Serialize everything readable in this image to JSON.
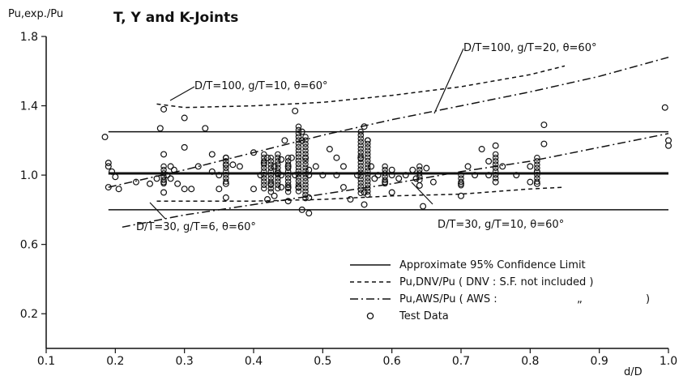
{
  "chart_data": {
    "type": "scatter",
    "title": "T, Y and K-Joints",
    "ylabel": "Pu,exp./Pu",
    "xlabel": "d/D",
    "xlim": [
      0.1,
      1.0
    ],
    "ylim": [
      0.0,
      1.8
    ],
    "x_ticks": [
      "0.1",
      "0.2",
      "0.3",
      "0.4",
      "0.5",
      "0.6",
      "0.7",
      "0.8",
      "0.9",
      "1.0"
    ],
    "y_ticks": [
      "0.2",
      "0.6",
      "1.0",
      "1.4",
      "1.8"
    ],
    "grid": false,
    "legend_position": "bottom-right",
    "legend": [
      {
        "key": "solid",
        "label": "Approximate 95% Confidence Limit"
      },
      {
        "key": "dashed",
        "label": "Pu,DNV/Pu ( DNV : S.F. not included )"
      },
      {
        "key": "dashdot",
        "label": "Pu,AWS/Pu ( AWS :"
      },
      {
        "key": "marker",
        "label": "Test Data"
      }
    ],
    "legend_ditto": "„",
    "legend_close": ")",
    "annotations": [
      {
        "text": "D/T=100, g/T=20, θ=60°"
      },
      {
        "text": "D/T=100, g/T=10, θ=60°"
      },
      {
        "text": "D/T=30, g/T=6, θ=60°"
      },
      {
        "text": "D/T=30, g/T=10, θ=60°"
      }
    ],
    "series": [
      {
        "style": "solid",
        "width": 3,
        "x": [
          0.19,
          1.0
        ],
        "y": [
          1.01,
          1.01
        ]
      },
      {
        "style": "solid",
        "width": 1.5,
        "x": [
          0.19,
          1.0
        ],
        "y": [
          1.25,
          1.25
        ]
      },
      {
        "style": "solid",
        "width": 1.5,
        "x": [
          0.19,
          1.0
        ],
        "y": [
          0.8,
          0.8
        ]
      },
      {
        "style": "dashed",
        "width": 1.5,
        "x": [
          0.26,
          0.3,
          0.4,
          0.5,
          0.6,
          0.7,
          0.8,
          0.85
        ],
        "y": [
          1.41,
          1.39,
          1.4,
          1.42,
          1.46,
          1.51,
          1.58,
          1.63
        ]
      },
      {
        "style": "dashed",
        "width": 1.5,
        "x": [
          0.26,
          0.3,
          0.4,
          0.5,
          0.6,
          0.7,
          0.8,
          0.85
        ],
        "y": [
          0.85,
          0.85,
          0.85,
          0.86,
          0.88,
          0.89,
          0.92,
          0.93
        ]
      },
      {
        "style": "dashdot",
        "width": 1.5,
        "x": [
          0.19,
          0.3,
          0.4,
          0.5,
          0.6,
          0.7,
          0.8,
          0.9,
          1.0
        ],
        "y": [
          0.93,
          1.03,
          1.13,
          1.23,
          1.32,
          1.4,
          1.48,
          1.57,
          1.68
        ]
      },
      {
        "style": "dashdot",
        "width": 1.5,
        "x": [
          0.21,
          0.3,
          0.4,
          0.5,
          0.6,
          0.7,
          0.8,
          0.9,
          1.0
        ],
        "y": [
          0.7,
          0.77,
          0.83,
          0.89,
          0.95,
          1.02,
          1.08,
          1.16,
          1.24
        ]
      },
      {
        "style": "marker",
        "x": [
          0.185,
          0.19,
          0.19,
          0.195,
          0.2,
          0.205,
          0.23,
          0.25,
          0.26,
          0.265,
          0.27,
          0.27,
          0.27,
          0.275,
          0.28,
          0.28,
          0.285,
          0.29,
          0.3,
          0.3,
          0.31,
          0.32,
          0.33,
          0.34,
          0.34,
          0.35,
          0.35,
          0.36,
          0.36,
          0.36,
          0.37,
          0.38,
          0.4,
          0.4,
          0.41,
          0.415,
          0.42,
          0.42,
          0.425,
          0.43,
          0.43,
          0.435,
          0.44,
          0.44,
          0.445,
          0.45,
          0.45,
          0.455,
          0.46,
          0.46,
          0.465,
          0.47,
          0.47,
          0.475,
          0.48,
          0.48,
          0.48,
          0.49,
          0.5,
          0.51,
          0.52,
          0.53,
          0.53,
          0.54,
          0.55,
          0.555,
          0.56,
          0.56,
          0.565,
          0.57,
          0.575,
          0.58,
          0.59,
          0.6,
          0.6,
          0.61,
          0.62,
          0.63,
          0.635,
          0.64,
          0.645,
          0.65,
          0.66,
          0.7,
          0.7,
          0.71,
          0.72,
          0.73,
          0.74,
          0.74,
          0.75,
          0.75,
          0.76,
          0.78,
          0.8,
          0.8,
          0.81,
          0.81,
          0.82,
          0.82,
          0.995,
          1.0,
          1.0,
          0.19,
          0.27,
          0.3,
          0.47,
          0.56,
          0.6,
          0.44,
          0.48,
          0.52,
          0.36,
          0.45
        ],
        "y": [
          1.22,
          1.05,
          0.93,
          1.02,
          0.99,
          0.92,
          0.96,
          0.95,
          0.98,
          1.27,
          1.38,
          1.12,
          0.9,
          1.0,
          1.05,
          0.98,
          1.03,
          0.95,
          1.16,
          1.33,
          0.92,
          1.05,
          1.27,
          1.12,
          1.02,
          1.0,
          0.92,
          1.1,
          0.95,
          0.87,
          1.06,
          1.05,
          1.13,
          0.92,
          1.0,
          1.07,
          1.1,
          0.86,
          0.95,
          1.05,
          0.88,
          1.01,
          1.09,
          0.93,
          1.2,
          1.05,
          0.85,
          1.1,
          1.37,
          1.0,
          0.93,
          1.2,
          0.8,
          1.1,
          1.0,
          0.87,
          0.78,
          1.05,
          1.0,
          1.15,
          1.1,
          0.93,
          1.05,
          0.86,
          1.0,
          1.1,
          1.28,
          0.9,
          1.2,
          1.05,
          0.98,
          1.0,
          0.96,
          0.9,
          1.0,
          0.98,
          1.0,
          1.03,
          0.98,
          0.94,
          0.82,
          1.04,
          0.96,
          0.88,
          0.95,
          1.05,
          1.0,
          1.15,
          1.08,
          1.0,
          1.17,
          0.96,
          1.05,
          1.0,
          0.96,
          1.05,
          1.02,
          0.95,
          1.29,
          1.18,
          1.39,
          1.2,
          1.17,
          1.07,
          0.96,
          0.92,
          1.25,
          0.83,
          1.03,
          1.0,
          1.03,
          1.0,
          1.06,
          0.93
        ]
      },
      {
        "style": "marker_dense",
        "x": [
          0.27,
          0.36,
          0.415,
          0.425,
          0.435,
          0.45,
          0.465,
          0.475,
          0.555,
          0.565,
          0.59,
          0.64,
          0.7,
          0.75,
          0.81
        ],
        "y0": [
          0.95,
          0.95,
          0.92,
          0.9,
          0.92,
          0.9,
          0.9,
          0.85,
          0.88,
          0.88,
          0.95,
          0.97,
          0.93,
          0.98,
          0.95
        ],
        "y1": [
          1.05,
          1.1,
          1.12,
          1.1,
          1.12,
          1.1,
          1.28,
          1.22,
          1.25,
          1.2,
          1.05,
          1.05,
          1.0,
          1.12,
          1.1
        ]
      }
    ]
  }
}
